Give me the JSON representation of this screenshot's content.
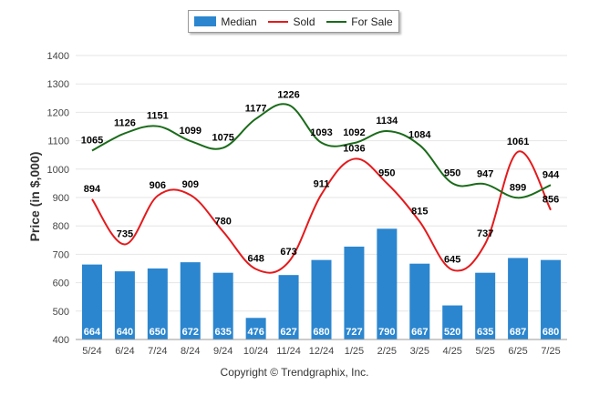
{
  "chart_data": {
    "type": "bar",
    "categories": [
      "5/24",
      "6/24",
      "7/24",
      "8/24",
      "9/24",
      "10/24",
      "11/24",
      "12/24",
      "1/25",
      "2/25",
      "3/25",
      "4/25",
      "5/25",
      "6/25",
      "7/25"
    ],
    "series": [
      {
        "name": "Median",
        "type": "bar",
        "color": "#2b86cf",
        "values": [
          664,
          640,
          650,
          672,
          635,
          476,
          627,
          680,
          727,
          790,
          667,
          520,
          635,
          687,
          680
        ]
      },
      {
        "name": "Sold",
        "type": "line",
        "color": "#e41a1c",
        "values": [
          894,
          735,
          906,
          909,
          780,
          648,
          673,
          911,
          1036,
          950,
          815,
          645,
          737,
          1061,
          856
        ]
      },
      {
        "name": "For Sale",
        "type": "line",
        "color": "#1a6b1a",
        "values": [
          1065,
          1126,
          1151,
          1099,
          1075,
          1177,
          1226,
          1093,
          1092,
          1134,
          1084,
          950,
          947,
          899,
          944
        ]
      }
    ],
    "ylabel": "Price (in $,000)",
    "ylim": [
      400,
      1400
    ],
    "yticks": [
      400,
      500,
      600,
      700,
      800,
      900,
      1000,
      1100,
      1200,
      1300,
      1400
    ],
    "grid": true,
    "legend_position": "top-center"
  },
  "legend": {
    "median_label": "Median",
    "sold_label": "Sold",
    "forsale_label": "For Sale"
  },
  "footer": {
    "copyright": "Copyright © Trendgraphix, Inc."
  }
}
